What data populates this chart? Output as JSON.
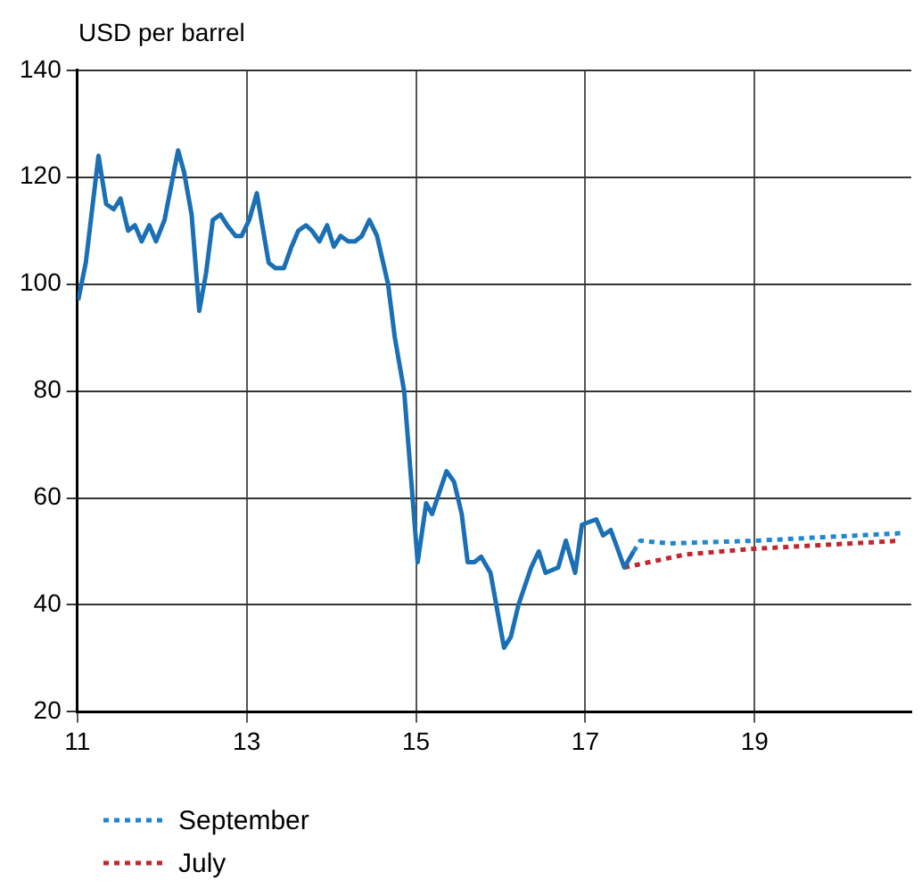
{
  "chart_data": {
    "type": "line",
    "ylabel": "USD per barrel",
    "xlim": [
      11,
      20.85
    ],
    "xticks": [
      11,
      13,
      15,
      17,
      19
    ],
    "ylim": [
      20,
      140
    ],
    "yticks": [
      20,
      40,
      60,
      80,
      100,
      120,
      140
    ],
    "grid": true,
    "legend": "bottom left",
    "marker": "none",
    "series": [
      {
        "color": "#1a6fb5",
        "line_style": "solid",
        "x": [
          11.01,
          11.1,
          11.25,
          11.34,
          11.43,
          11.51,
          11.6,
          11.68,
          11.76,
          11.85,
          11.93,
          12.03,
          12.19,
          12.26,
          12.35,
          12.44,
          12.52,
          12.6,
          12.69,
          12.77,
          12.87,
          12.94,
          13.03,
          13.12,
          13.26,
          13.34,
          13.44,
          13.53,
          13.61,
          13.7,
          13.77,
          13.86,
          13.95,
          14.03,
          14.11,
          14.2,
          14.28,
          14.36,
          14.45,
          14.54,
          14.67,
          14.75,
          14.86,
          15.02,
          15.12,
          15.19,
          15.36,
          15.45,
          15.54,
          15.61,
          15.69,
          15.77,
          15.88,
          16.04,
          16.12,
          16.21,
          16.36,
          16.45,
          16.53,
          16.68,
          16.77,
          16.88,
          16.96,
          17.13,
          17.21,
          17.3,
          17.37,
          17.46,
          17.57
        ],
        "values": [
          97,
          104,
          124,
          115,
          114,
          116,
          110,
          111,
          108,
          111,
          108,
          112,
          125,
          121,
          113,
          95,
          102,
          112,
          113,
          111,
          109,
          109,
          112,
          117,
          104,
          103,
          103,
          107,
          110,
          111,
          110,
          108,
          111,
          107,
          109,
          108,
          108,
          109,
          112,
          109,
          100,
          90,
          80,
          48,
          59,
          57,
          65,
          63,
          57,
          48,
          48,
          49,
          46,
          32,
          34,
          40,
          47,
          50,
          46,
          47,
          52,
          46,
          55,
          56,
          53,
          54,
          51,
          47,
          50
        ]
      },
      {
        "name": "September",
        "color": "#1f86d0",
        "line_style": "dotted",
        "x": [
          17.57,
          17.65,
          18.0,
          19.0,
          20.72
        ],
        "values": [
          50,
          52,
          51.5,
          52,
          53.4
        ]
      },
      {
        "name": "July",
        "color": "#c0282f",
        "line_style": "dotted",
        "x": [
          17.46,
          18.17,
          19.0,
          20.72
        ],
        "values": [
          47,
          49.4,
          50.5,
          52
        ]
      }
    ]
  }
}
